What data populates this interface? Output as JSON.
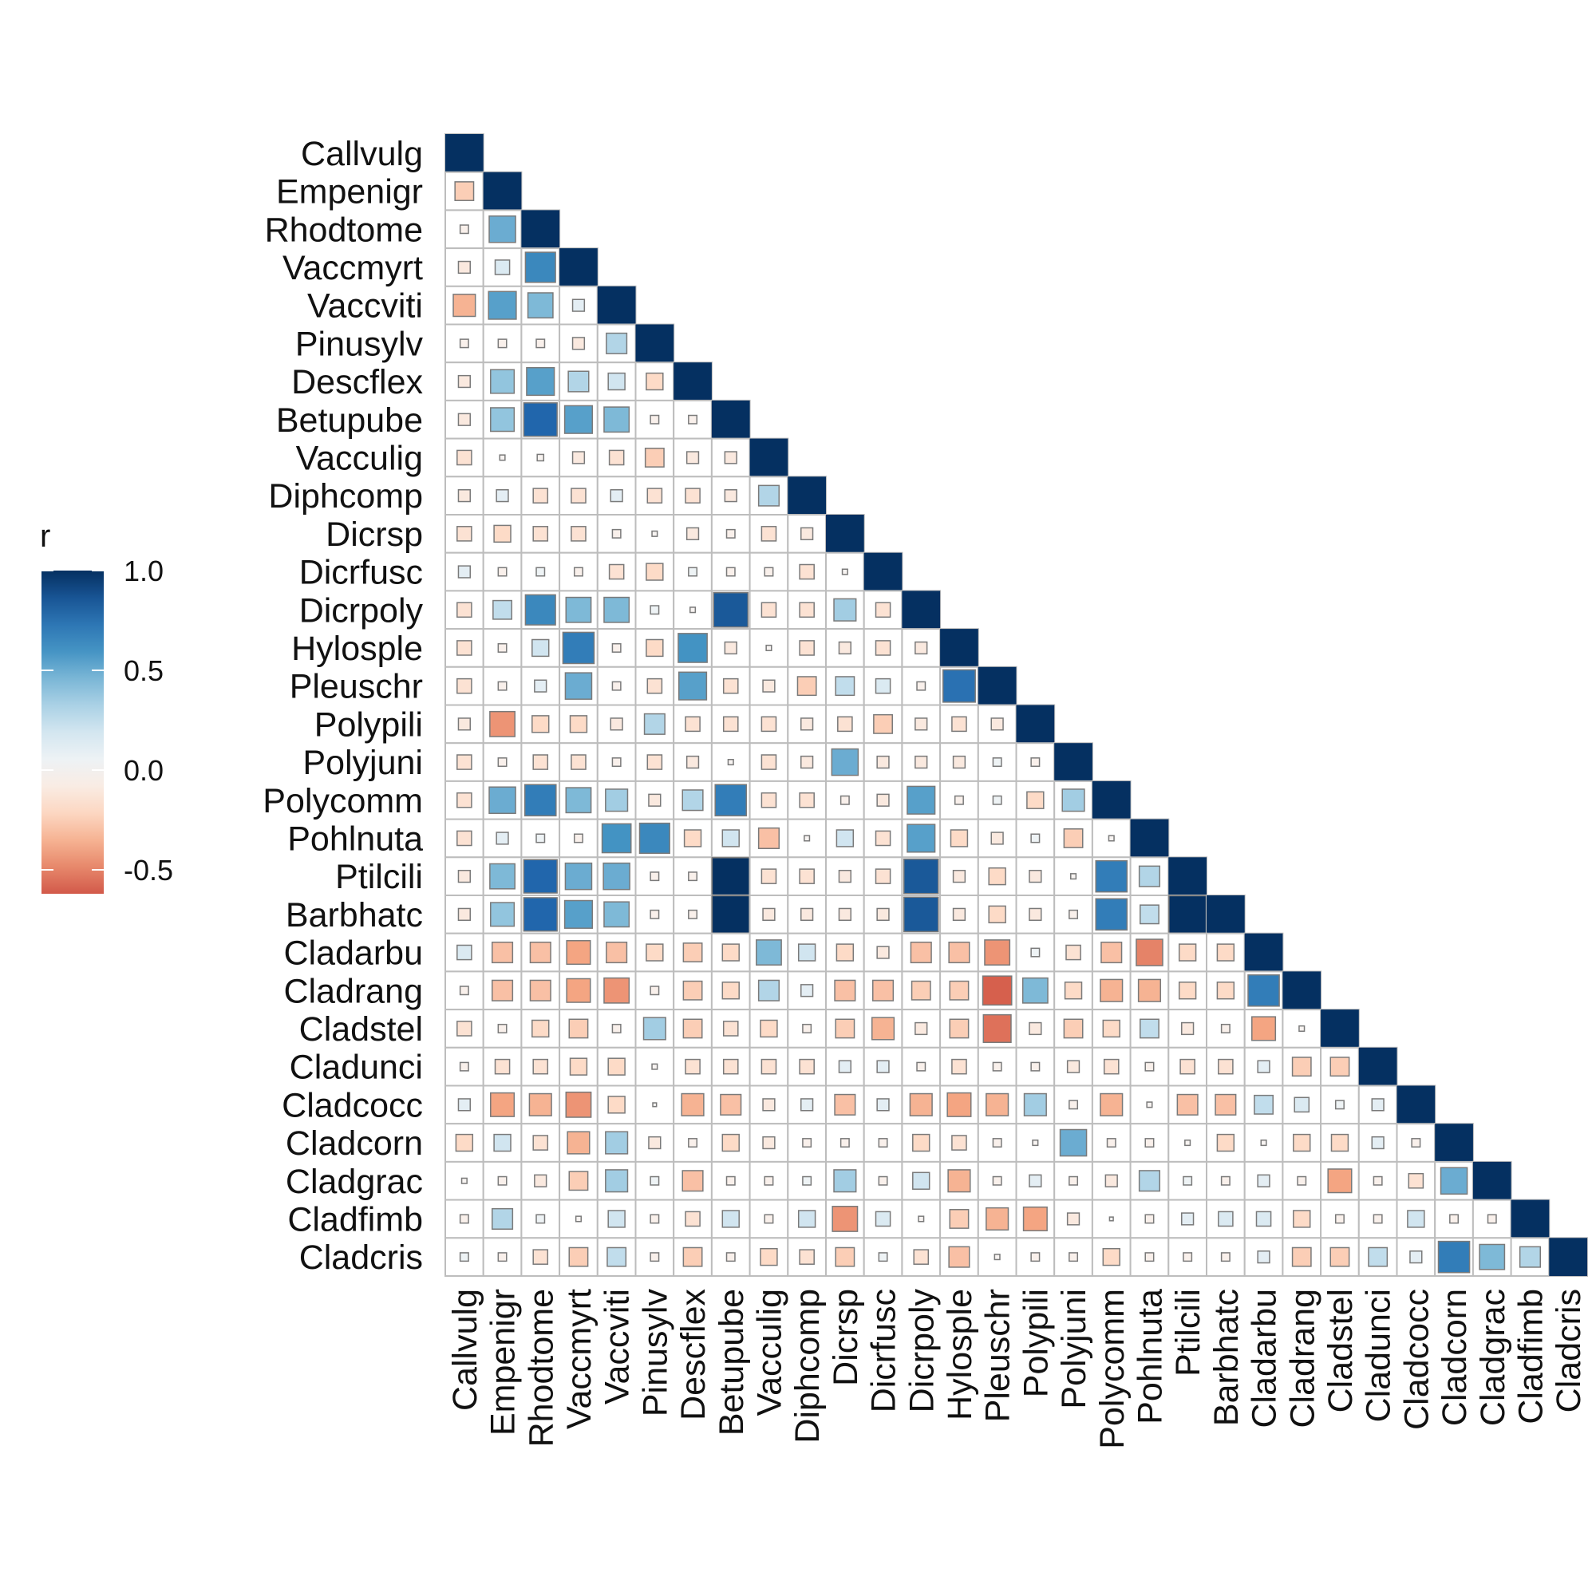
{
  "chart_data": {
    "type": "heatmap",
    "title": "",
    "variables": [
      "Callvulg",
      "Empenigr",
      "Rhodtome",
      "Vaccmyrt",
      "Vaccviti",
      "Pinusylv",
      "Descflex",
      "Betupube",
      "Vacculig",
      "Diphcomp",
      "Dicrsp",
      "Dicrfusc",
      "Dicrpoly",
      "Hylosple",
      "Pleuschr",
      "Polypili",
      "Polyjuni",
      "Polycomm",
      "Pohlnuta",
      "Ptilcili",
      "Barbhatc",
      "Cladarbu",
      "Cladrang",
      "Cladstel",
      "Cladunci",
      "Cladcocc",
      "Cladcorn",
      "Cladgrac",
      "Cladfimb",
      "Cladcris"
    ],
    "correlations": [
      [
        1
      ],
      [
        -0.25,
        1
      ],
      [
        -0.05,
        0.5,
        1
      ],
      [
        -0.1,
        0.15,
        0.65,
        1
      ],
      [
        -0.35,
        0.55,
        0.45,
        0.1,
        1
      ],
      [
        -0.05,
        -0.05,
        -0.05,
        -0.1,
        0.3,
        1
      ],
      [
        -0.1,
        0.4,
        0.55,
        0.3,
        0.2,
        -0.2,
        1
      ],
      [
        -0.1,
        0.4,
        0.8,
        0.55,
        0.45,
        -0.05,
        -0.05,
        1
      ],
      [
        -0.15,
        -0.02,
        -0.03,
        -0.1,
        -0.15,
        -0.25,
        -0.1,
        -0.1,
        1
      ],
      [
        -0.1,
        0.1,
        -0.15,
        -0.15,
        0.1,
        -0.15,
        -0.15,
        -0.1,
        0.3,
        1
      ],
      [
        -0.15,
        -0.2,
        -0.15,
        -0.15,
        -0.05,
        -0.02,
        -0.1,
        -0.05,
        -0.15,
        -0.1,
        1
      ],
      [
        0.1,
        -0.05,
        0.05,
        -0.05,
        -0.15,
        -0.2,
        0.05,
        -0.05,
        -0.05,
        -0.15,
        -0.02,
        1
      ],
      [
        -0.15,
        0.25,
        0.65,
        0.45,
        0.45,
        0.05,
        -0.02,
        0.85,
        -0.15,
        -0.15,
        0.35,
        -0.15,
        1
      ],
      [
        -0.15,
        -0.05,
        0.2,
        0.7,
        -0.05,
        -0.2,
        0.6,
        -0.1,
        -0.02,
        -0.15,
        -0.1,
        -0.15,
        -0.1,
        1
      ],
      [
        -0.15,
        -0.05,
        0.1,
        0.5,
        -0.05,
        -0.15,
        0.55,
        -0.15,
        -0.1,
        -0.25,
        0.25,
        0.15,
        -0.05,
        0.75,
        1
      ],
      [
        -0.1,
        -0.45,
        -0.2,
        -0.2,
        -0.1,
        0.3,
        -0.15,
        -0.15,
        -0.15,
        -0.1,
        -0.15,
        -0.25,
        -0.1,
        -0.15,
        -0.1,
        1
      ],
      [
        -0.15,
        -0.05,
        -0.15,
        -0.15,
        -0.05,
        -0.15,
        -0.1,
        -0.02,
        -0.15,
        -0.1,
        0.5,
        -0.1,
        -0.1,
        -0.1,
        0.05,
        -0.05,
        1
      ],
      [
        -0.15,
        0.5,
        0.7,
        0.45,
        0.35,
        -0.1,
        0.3,
        0.7,
        -0.15,
        -0.15,
        -0.05,
        -0.1,
        0.55,
        -0.05,
        0.05,
        -0.2,
        0.35,
        1
      ],
      [
        -0.15,
        0.1,
        0.05,
        -0.05,
        0.6,
        0.65,
        -0.2,
        0.2,
        -0.3,
        -0.02,
        0.2,
        -0.15,
        0.55,
        -0.2,
        -0.1,
        0.05,
        -0.25,
        -0.02,
        1
      ],
      [
        -0.1,
        0.45,
        0.8,
        0.5,
        0.5,
        -0.05,
        -0.05,
        1,
        -0.15,
        -0.15,
        -0.1,
        -0.15,
        0.85,
        -0.1,
        -0.2,
        -0.1,
        -0.02,
        0.7,
        0.3,
        1
      ],
      [
        -0.1,
        0.4,
        0.8,
        0.55,
        0.45,
        -0.05,
        -0.05,
        1,
        -0.1,
        -0.1,
        -0.1,
        -0.1,
        0.85,
        -0.1,
        -0.2,
        -0.1,
        -0.05,
        0.7,
        0.25,
        1,
        1
      ],
      [
        0.15,
        -0.3,
        -0.3,
        -0.4,
        -0.3,
        -0.2,
        -0.25,
        -0.2,
        0.45,
        0.2,
        -0.2,
        -0.1,
        -0.3,
        -0.3,
        -0.45,
        0.05,
        -0.15,
        -0.3,
        -0.5,
        -0.2,
        -0.2,
        1
      ],
      [
        -0.05,
        -0.3,
        -0.3,
        -0.4,
        -0.45,
        -0.05,
        -0.25,
        -0.2,
        0.3,
        0.1,
        -0.3,
        -0.3,
        -0.25,
        -0.25,
        -0.6,
        0.45,
        -0.2,
        -0.35,
        -0.35,
        -0.2,
        -0.2,
        0.7,
        1
      ],
      [
        -0.15,
        -0.05,
        -0.2,
        -0.25,
        -0.05,
        0.35,
        -0.25,
        -0.15,
        -0.2,
        -0.05,
        -0.25,
        -0.35,
        -0.1,
        -0.25,
        -0.55,
        -0.1,
        -0.25,
        -0.2,
        0.25,
        -0.1,
        -0.05,
        -0.4,
        -0.02,
        1
      ],
      [
        -0.05,
        -0.15,
        -0.15,
        -0.2,
        -0.2,
        -0.02,
        -0.15,
        -0.15,
        -0.15,
        -0.15,
        0.1,
        0.1,
        -0.05,
        -0.15,
        -0.05,
        -0.05,
        -0.1,
        -0.15,
        -0.05,
        -0.15,
        -0.15,
        0.1,
        -0.25,
        -0.25,
        1
      ],
      [
        0.1,
        -0.4,
        -0.35,
        -0.45,
        -0.2,
        -0.01,
        -0.35,
        -0.3,
        -0.1,
        0.1,
        -0.3,
        0.1,
        -0.35,
        -0.4,
        -0.35,
        0.35,
        -0.05,
        -0.35,
        -0.02,
        -0.3,
        -0.3,
        0.25,
        0.15,
        0.05,
        0.1,
        1
      ],
      [
        -0.2,
        0.2,
        -0.15,
        -0.35,
        0.35,
        -0.1,
        -0.05,
        -0.2,
        -0.1,
        -0.05,
        -0.05,
        -0.05,
        -0.2,
        -0.15,
        -0.05,
        -0.02,
        0.5,
        -0.05,
        -0.05,
        -0.02,
        -0.2,
        -0.02,
        -0.2,
        -0.2,
        0.1,
        -0.05,
        1
      ],
      [
        -0.02,
        -0.05,
        -0.1,
        -0.25,
        0.35,
        0.05,
        -0.3,
        -0.05,
        -0.05,
        0.05,
        0.35,
        -0.05,
        0.2,
        -0.35,
        -0.05,
        0.1,
        -0.05,
        -0.1,
        0.3,
        0.05,
        -0.05,
        0.1,
        -0.05,
        -0.4,
        -0.05,
        -0.15,
        0.5,
        1
      ],
      [
        -0.05,
        0.3,
        0.05,
        -0.02,
        0.2,
        -0.05,
        -0.15,
        0.2,
        -0.05,
        0.2,
        -0.45,
        0.15,
        -0.02,
        -0.25,
        -0.35,
        -0.4,
        -0.1,
        -0.01,
        -0.05,
        0.1,
        0.15,
        0.15,
        -0.2,
        -0.05,
        -0.05,
        0.2,
        -0.05,
        -0.05,
        1
      ],
      [
        0.05,
        -0.05,
        -0.15,
        -0.25,
        0.25,
        -0.05,
        -0.25,
        -0.05,
        -0.2,
        -0.15,
        -0.25,
        0.05,
        -0.15,
        -0.3,
        -0.02,
        -0.05,
        -0.05,
        -0.2,
        -0.05,
        -0.05,
        -0.05,
        0.1,
        -0.25,
        -0.25,
        0.25,
        0.1,
        0.7,
        0.45,
        0.3,
        1
      ]
    ],
    "legend": {
      "title": "r",
      "placement": "left",
      "ticks": [
        {
          "value": 1.0,
          "label": "1.0"
        },
        {
          "value": 0.5,
          "label": "0.5"
        },
        {
          "value": 0.0,
          "label": "0.0"
        },
        {
          "value": -0.5,
          "label": "-0.5"
        }
      ],
      "range": [
        -0.62,
        1.0
      ]
    },
    "palette": [
      "#67001f",
      "#b2182b",
      "#d6604d",
      "#f4a582",
      "#fddbc7",
      "#f7f7f7",
      "#d1e5f0",
      "#92c5de",
      "#4393c3",
      "#2166ac",
      "#053061"
    ]
  }
}
